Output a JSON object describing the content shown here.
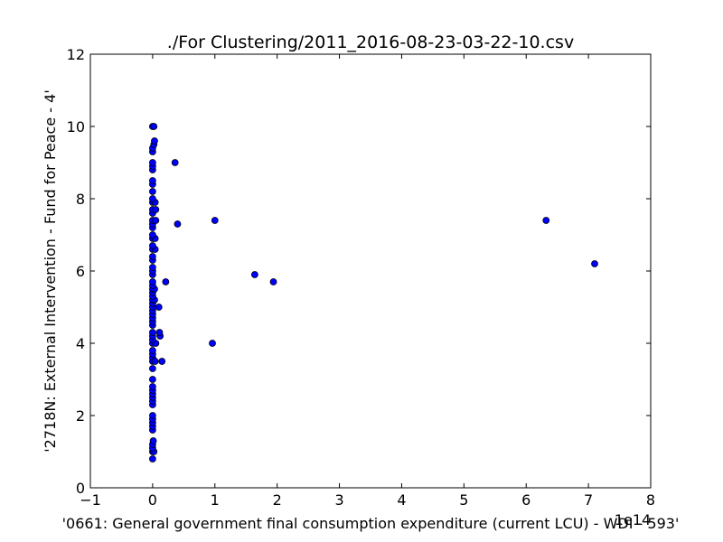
{
  "chart_data": {
    "type": "scatter",
    "title": "./For Clustering/2011_2016-08-23-03-22-10.csv",
    "xlabel": "'0661: General government final consumption expenditure  (current LCU) - WDI - 593'",
    "ylabel": "'2718N: External Intervention - Fund for Peace - 4'",
    "x_offset_label": "1e14",
    "xlim": [
      -1,
      8
    ],
    "ylim": [
      0,
      12
    ],
    "xticks": [
      -1,
      0,
      1,
      2,
      3,
      4,
      5,
      6,
      7,
      8
    ],
    "yticks": [
      0,
      2,
      4,
      6,
      8,
      10,
      12
    ],
    "xtick_labels": [
      "−1",
      "0",
      "1",
      "2",
      "3",
      "4",
      "5",
      "6",
      "7",
      "8"
    ],
    "ytick_labels": [
      "0",
      "2",
      "4",
      "6",
      "8",
      "10",
      "12"
    ],
    "grid": false,
    "marker_color": "#0000ff",
    "points": [
      {
        "x": 0.0,
        "y": 0.8
      },
      {
        "x": 0.0,
        "y": 1.0
      },
      {
        "x": 0.02,
        "y": 1.0
      },
      {
        "x": 0.0,
        "y": 1.1
      },
      {
        "x": 0.0,
        "y": 1.2
      },
      {
        "x": 0.01,
        "y": 1.3
      },
      {
        "x": 0.0,
        "y": 1.6
      },
      {
        "x": 0.0,
        "y": 1.7
      },
      {
        "x": 0.0,
        "y": 1.8
      },
      {
        "x": 0.0,
        "y": 1.9
      },
      {
        "x": 0.0,
        "y": 2.0
      },
      {
        "x": 0.0,
        "y": 2.3
      },
      {
        "x": 0.0,
        "y": 2.4
      },
      {
        "x": 0.0,
        "y": 2.5
      },
      {
        "x": 0.0,
        "y": 2.6
      },
      {
        "x": 0.0,
        "y": 2.7
      },
      {
        "x": 0.0,
        "y": 2.8
      },
      {
        "x": 0.0,
        "y": 3.0
      },
      {
        "x": 0.0,
        "y": 3.3
      },
      {
        "x": 0.0,
        "y": 3.5
      },
      {
        "x": 0.0,
        "y": 3.6
      },
      {
        "x": 0.0,
        "y": 3.7
      },
      {
        "x": 0.0,
        "y": 3.8
      },
      {
        "x": 0.04,
        "y": 3.5
      },
      {
        "x": 0.15,
        "y": 3.5
      },
      {
        "x": 0.0,
        "y": 4.0
      },
      {
        "x": 0.05,
        "y": 4.0
      },
      {
        "x": 0.0,
        "y": 4.1
      },
      {
        "x": 0.0,
        "y": 4.2
      },
      {
        "x": 0.0,
        "y": 4.3
      },
      {
        "x": 0.12,
        "y": 4.2
      },
      {
        "x": 0.11,
        "y": 4.3
      },
      {
        "x": 0.0,
        "y": 4.5
      },
      {
        "x": 0.0,
        "y": 4.6
      },
      {
        "x": 0.0,
        "y": 4.7
      },
      {
        "x": 0.0,
        "y": 4.8
      },
      {
        "x": 0.0,
        "y": 4.9
      },
      {
        "x": 0.0,
        "y": 5.0
      },
      {
        "x": 0.1,
        "y": 5.0
      },
      {
        "x": 0.0,
        "y": 5.1
      },
      {
        "x": 0.0,
        "y": 5.2
      },
      {
        "x": 0.03,
        "y": 5.2
      },
      {
        "x": 0.0,
        "y": 5.3
      },
      {
        "x": 0.0,
        "y": 5.4
      },
      {
        "x": 0.0,
        "y": 5.5
      },
      {
        "x": 0.03,
        "y": 5.5
      },
      {
        "x": 0.0,
        "y": 5.6
      },
      {
        "x": 0.0,
        "y": 5.7
      },
      {
        "x": 0.21,
        "y": 5.7
      },
      {
        "x": 0.0,
        "y": 5.9
      },
      {
        "x": 0.0,
        "y": 6.0
      },
      {
        "x": 0.0,
        "y": 6.1
      },
      {
        "x": 0.0,
        "y": 6.3
      },
      {
        "x": 0.0,
        "y": 6.4
      },
      {
        "x": 0.0,
        "y": 6.6
      },
      {
        "x": 0.04,
        "y": 6.6
      },
      {
        "x": 0.0,
        "y": 6.7
      },
      {
        "x": 0.0,
        "y": 6.9
      },
      {
        "x": 0.04,
        "y": 6.9
      },
      {
        "x": 0.0,
        "y": 7.0
      },
      {
        "x": 0.0,
        "y": 7.2
      },
      {
        "x": 0.0,
        "y": 7.3
      },
      {
        "x": 0.0,
        "y": 7.4
      },
      {
        "x": 0.05,
        "y": 7.4
      },
      {
        "x": 0.0,
        "y": 7.6
      },
      {
        "x": 0.0,
        "y": 7.7
      },
      {
        "x": 0.05,
        "y": 7.7
      },
      {
        "x": 0.0,
        "y": 7.9
      },
      {
        "x": 0.04,
        "y": 7.9
      },
      {
        "x": 0.0,
        "y": 8.0
      },
      {
        "x": 0.0,
        "y": 8.2
      },
      {
        "x": 0.0,
        "y": 8.4
      },
      {
        "x": 0.0,
        "y": 8.5
      },
      {
        "x": 0.0,
        "y": 8.8
      },
      {
        "x": 0.0,
        "y": 8.9
      },
      {
        "x": 0.0,
        "y": 9.0
      },
      {
        "x": 0.0,
        "y": 9.3
      },
      {
        "x": 0.0,
        "y": 9.4
      },
      {
        "x": 0.02,
        "y": 9.5
      },
      {
        "x": 0.03,
        "y": 9.6
      },
      {
        "x": 0.0,
        "y": 10.0
      },
      {
        "x": 0.02,
        "y": 10.0
      },
      {
        "x": 0.36,
        "y": 9.0
      },
      {
        "x": 0.4,
        "y": 7.3
      },
      {
        "x": 1.0,
        "y": 7.4
      },
      {
        "x": 0.96,
        "y": 4.0
      },
      {
        "x": 1.64,
        "y": 5.9
      },
      {
        "x": 1.94,
        "y": 5.7
      },
      {
        "x": 6.32,
        "y": 7.4
      },
      {
        "x": 7.1,
        "y": 6.2
      }
    ]
  }
}
